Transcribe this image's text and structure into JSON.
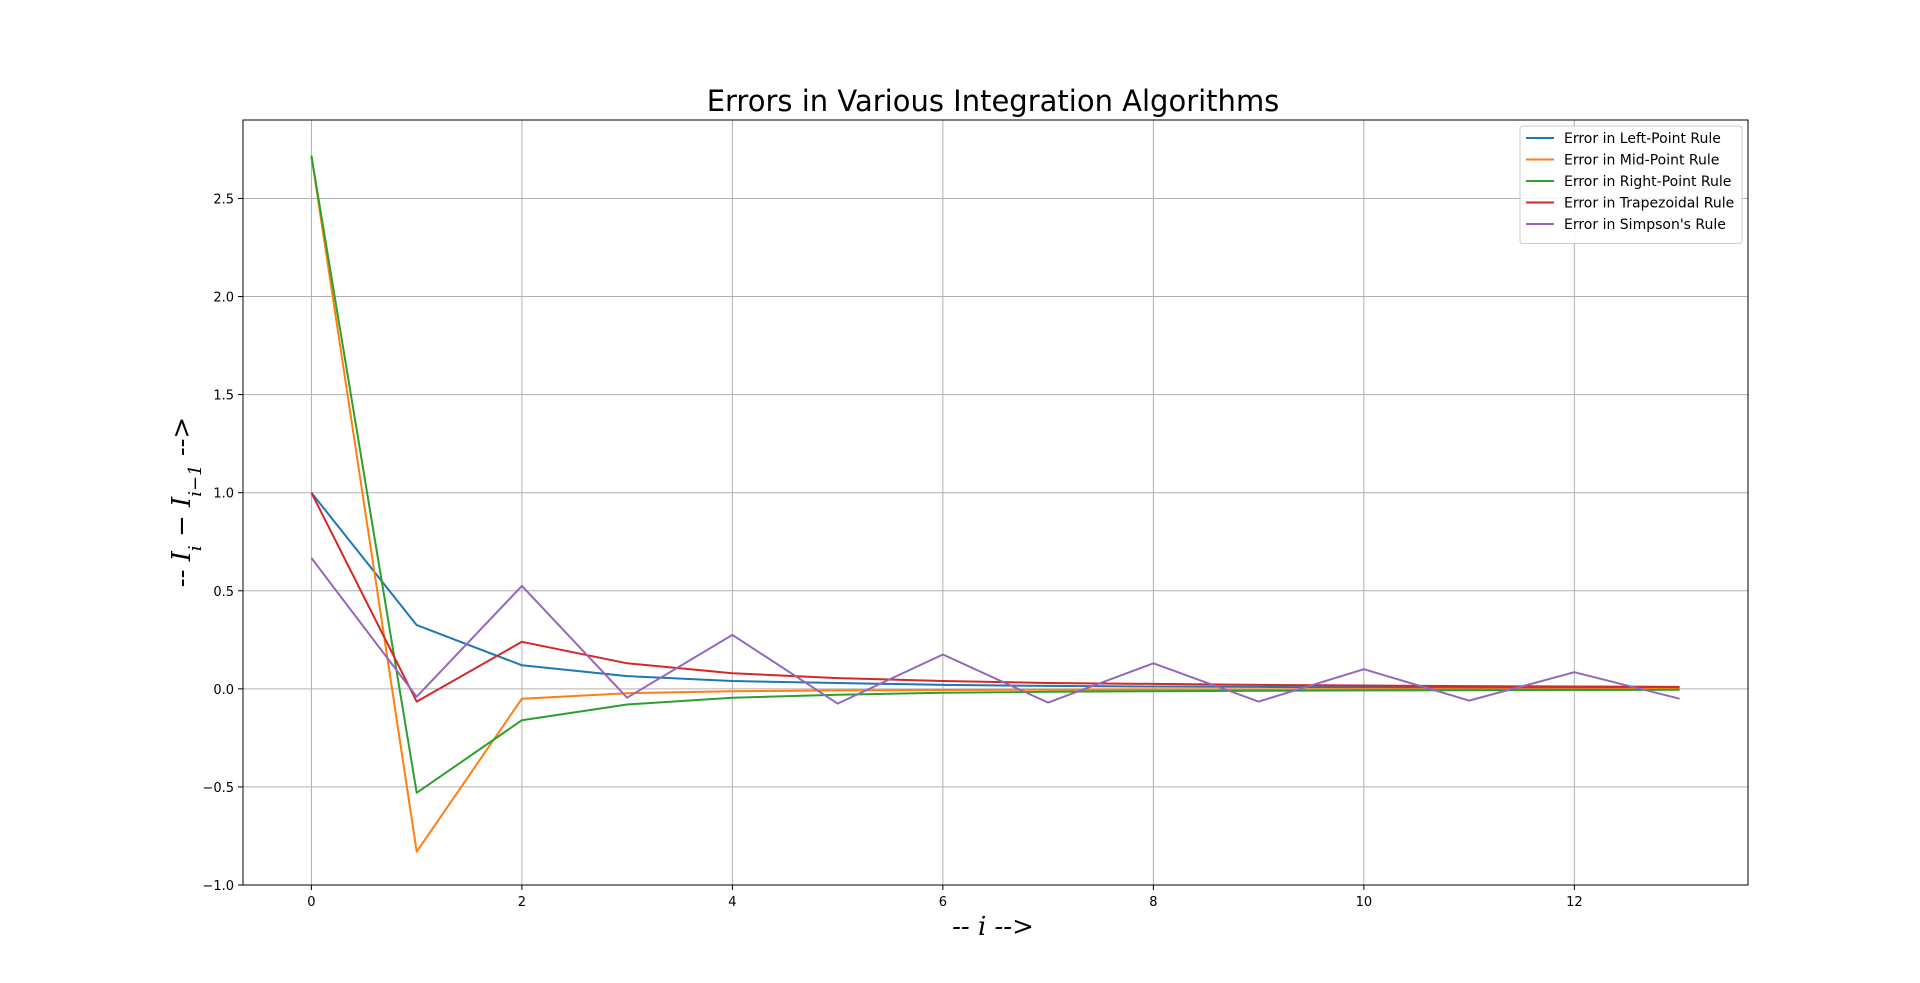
{
  "chart_data": {
    "type": "line",
    "title": "Errors in Various Integration Algorithms",
    "xlabel": "-- i -->",
    "ylabel": "-- I_i − I_{i−1} -->",
    "xlim": [
      -0.65,
      13.65
    ],
    "ylim": [
      -1.0,
      2.9
    ],
    "xticks": [
      0,
      2,
      4,
      6,
      8,
      10,
      12
    ],
    "yticks": [
      -1.0,
      -0.5,
      0.0,
      0.5,
      1.0,
      1.5,
      2.0,
      2.5
    ],
    "grid": true,
    "legend_position": "top-right",
    "x": [
      0,
      1,
      2,
      3,
      4,
      5,
      6,
      7,
      8,
      9,
      10,
      11,
      12,
      13
    ],
    "series": [
      {
        "name": "Error in Left-Point Rule",
        "color": "#1f77b4",
        "values": [
          1.0,
          0.325,
          0.12,
          0.065,
          0.04,
          0.03,
          0.02,
          0.015,
          0.012,
          0.01,
          0.008,
          0.007,
          0.006,
          0.005
        ]
      },
      {
        "name": "Error in Mid-Point Rule",
        "color": "#ff7f0e",
        "values": [
          2.718,
          -0.83,
          -0.05,
          -0.022,
          -0.012,
          -0.008,
          -0.006,
          -0.004,
          -0.003,
          -0.003,
          -0.002,
          -0.002,
          -0.002,
          -0.001
        ]
      },
      {
        "name": "Error in Right-Point Rule",
        "color": "#2ca02c",
        "values": [
          2.718,
          -0.53,
          -0.16,
          -0.08,
          -0.045,
          -0.03,
          -0.02,
          -0.015,
          -0.012,
          -0.01,
          -0.008,
          -0.007,
          -0.006,
          -0.005
        ]
      },
      {
        "name": "Error in Trapezoidal Rule",
        "color": "#d62728",
        "values": [
          1.0,
          -0.065,
          0.24,
          0.13,
          0.08,
          0.055,
          0.04,
          0.03,
          0.025,
          0.02,
          0.017,
          0.014,
          0.012,
          0.01
        ]
      },
      {
        "name": "Error in Simpson's Rule",
        "color": "#9467bd",
        "values": [
          0.667,
          -0.04,
          0.525,
          -0.045,
          0.275,
          -0.075,
          0.175,
          -0.07,
          0.13,
          -0.065,
          0.1,
          -0.06,
          0.085,
          -0.05
        ]
      }
    ]
  }
}
